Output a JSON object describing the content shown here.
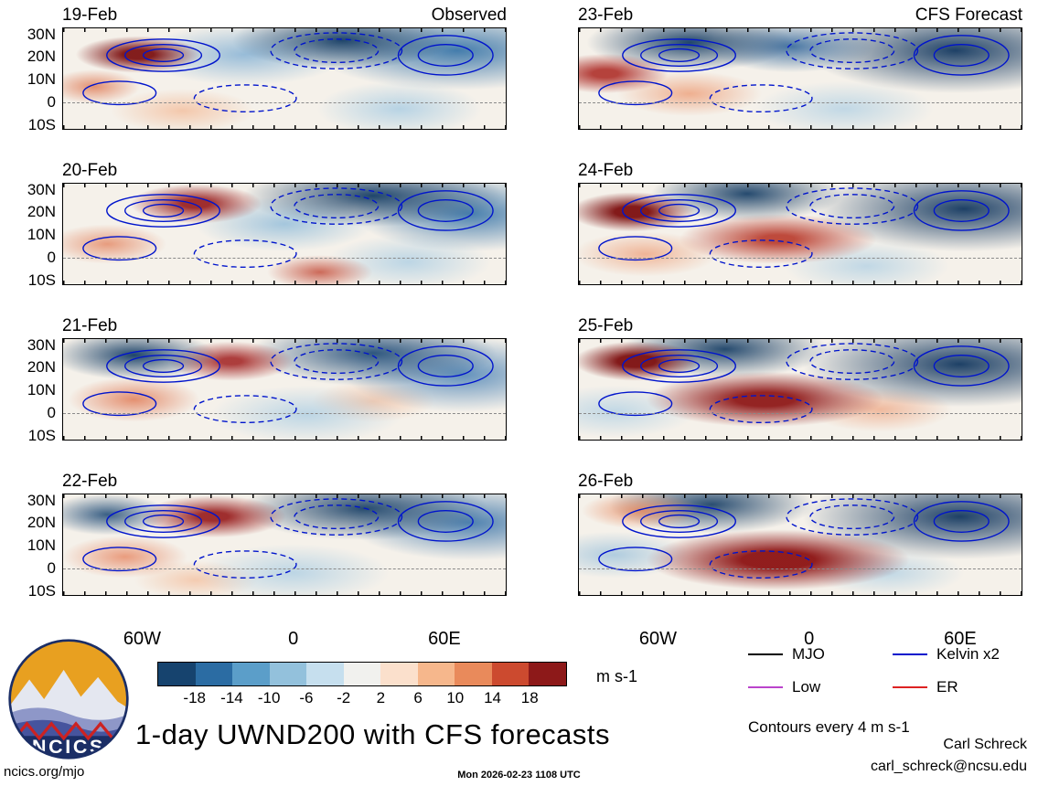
{
  "chart_data": {
    "type": "heatmap",
    "title": "1-day UWND200 with CFS forecasts",
    "variable": "UWND200 zonal wind anomaly",
    "units": "m s-1",
    "columns": [
      {
        "title": "Observed",
        "dates": [
          "19-Feb",
          "20-Feb",
          "21-Feb",
          "22-Feb"
        ]
      },
      {
        "title": "CFS Forecast",
        "dates": [
          "23-Feb",
          "24-Feb",
          "25-Feb",
          "26-Feb"
        ]
      }
    ],
    "lat_ticks": [
      "30N",
      "20N",
      "10N",
      "0",
      "10S"
    ],
    "lon_ticks": [
      "60W",
      "0",
      "60E"
    ],
    "colorbar": {
      "levels": [
        "-18",
        "-14",
        "-10",
        "-6",
        "-2",
        "2",
        "6",
        "10",
        "14",
        "18"
      ],
      "colors": [
        "#16436e",
        "#2b6ca3",
        "#5b9ec9",
        "#93c1dc",
        "#c6dfee",
        "#f1f1ee",
        "#fbe0cc",
        "#f6b78c",
        "#e98a5b",
        "#cc4a2f",
        "#8d1919"
      ],
      "label": "m s-1"
    },
    "contour_note": "Contours every 4 m s-1",
    "legend": [
      {
        "label": "MJO",
        "color": "#000000"
      },
      {
        "label": "Kelvin x2",
        "color": "#0014cc"
      },
      {
        "label": "Low",
        "color": "#bb44cc"
      },
      {
        "label": "ER",
        "color": "#dd2222"
      }
    ]
  },
  "footer": {
    "logo_text": "NCICS",
    "url": "ncics.org/mjo",
    "timestamp": "Mon 2026-02-23 1108 UTC",
    "credit": "Carl Schreck",
    "email": "carl_schreck@ncsu.edu"
  }
}
